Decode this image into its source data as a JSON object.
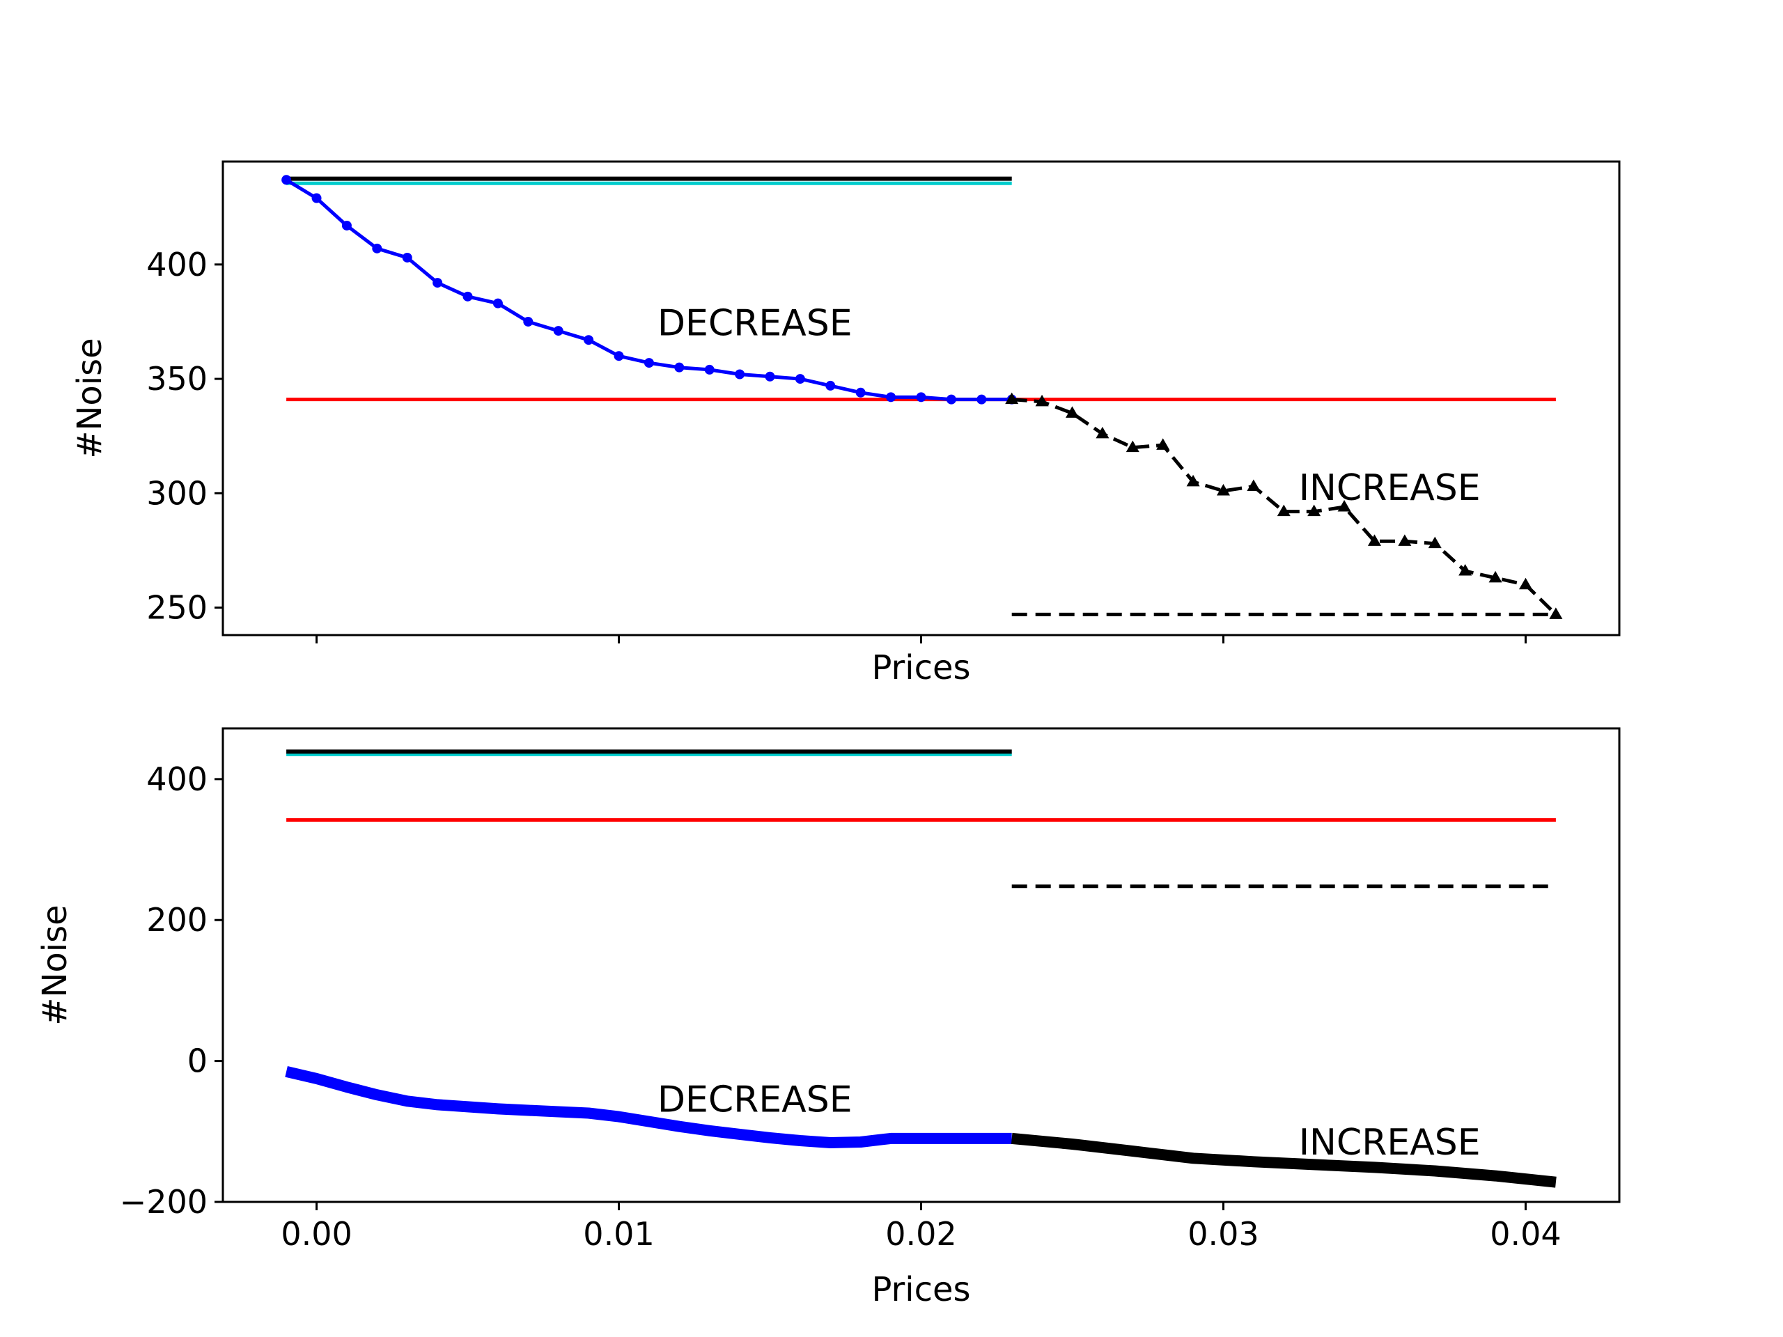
{
  "colors": {
    "decrease": "#0000ff",
    "increase": "#000000",
    "red_line": "#ff0000",
    "cyan_line": "#00cccc",
    "black_line": "#000000"
  },
  "chart_data": [
    {
      "type": "line",
      "panel": "top",
      "xlabel": "Prices",
      "ylabel": "#Noise",
      "xlim": [
        -0.0031,
        0.0431
      ],
      "ylim": [
        238,
        445
      ],
      "x_ticks": [
        0.0,
        0.01,
        0.02,
        0.03,
        0.04
      ],
      "x_tick_labels": [
        "",
        "",
        "",
        "",
        ""
      ],
      "y_ticks": [
        250,
        300,
        350,
        400
      ],
      "y_tick_labels": [
        "250",
        "300",
        "350",
        "400"
      ],
      "grid": false,
      "annotations": [
        {
          "text": "DECREASE",
          "x": 0.0145,
          "y": 369
        },
        {
          "text": "INCREASE",
          "x": 0.0355,
          "y": 297
        }
      ],
      "series": [
        {
          "role": "decrease",
          "style": "solid-dot",
          "x": [
            -0.001,
            0.0,
            0.001,
            0.002,
            0.003,
            0.004,
            0.005,
            0.006,
            0.007,
            0.008,
            0.009,
            0.01,
            0.011,
            0.012,
            0.013,
            0.014,
            0.015,
            0.016,
            0.017,
            0.018,
            0.019,
            0.02,
            0.021,
            0.022,
            0.023
          ],
          "y": [
            437,
            429,
            417,
            407,
            403,
            392,
            386,
            383,
            375,
            371,
            367,
            360,
            357,
            355,
            354,
            352,
            351,
            350,
            347,
            344,
            342,
            342,
            341,
            341,
            341
          ]
        },
        {
          "role": "increase",
          "style": "dashed-triangle",
          "x": [
            0.023,
            0.024,
            0.025,
            0.026,
            0.027,
            0.028,
            0.029,
            0.03,
            0.031,
            0.032,
            0.033,
            0.034,
            0.035,
            0.036,
            0.037,
            0.038,
            0.039,
            0.04,
            0.041
          ],
          "y": [
            341,
            340,
            335,
            326,
            320,
            321,
            305,
            301,
            303,
            292,
            292,
            294,
            279,
            279,
            278,
            266,
            263,
            260,
            247
          ]
        },
        {
          "role": "cyan_line",
          "style": "solid",
          "x": [
            -0.001,
            0.023
          ],
          "y": [
            435.5,
            435.5
          ]
        },
        {
          "role": "black_line",
          "style": "solid",
          "x": [
            -0.001,
            0.023
          ],
          "y": [
            437.5,
            437.5
          ]
        },
        {
          "role": "red_line",
          "style": "solid",
          "x": [
            -0.001,
            0.041
          ],
          "y": [
            341,
            341
          ]
        },
        {
          "role": "black_dashed",
          "style": "dashed",
          "x": [
            0.023,
            0.041
          ],
          "y": [
            247,
            247
          ]
        }
      ]
    },
    {
      "type": "line",
      "panel": "bottom",
      "xlabel": "Prices",
      "ylabel": "#Noise",
      "xlim": [
        -0.0031,
        0.0431
      ],
      "ylim": [
        -200,
        472
      ],
      "x_ticks": [
        0.0,
        0.01,
        0.02,
        0.03,
        0.04
      ],
      "x_tick_labels": [
        "0.00",
        "0.01",
        "0.02",
        "0.03",
        "0.04"
      ],
      "y_ticks": [
        -200,
        0,
        200,
        400
      ],
      "y_tick_labels": [
        "−200",
        "0",
        "200",
        "400"
      ],
      "grid": false,
      "annotations": [
        {
          "text": "DECREASE",
          "x": 0.0145,
          "y": -72
        },
        {
          "text": "INCREASE",
          "x": 0.0355,
          "y": -133
        }
      ],
      "series": [
        {
          "role": "decrease",
          "style": "thick",
          "x": [
            -0.001,
            0.0,
            0.001,
            0.002,
            0.003,
            0.004,
            0.005,
            0.006,
            0.007,
            0.008,
            0.009,
            0.01,
            0.011,
            0.012,
            0.013,
            0.014,
            0.015,
            0.016,
            0.017,
            0.018,
            0.019,
            0.02,
            0.021,
            0.022,
            0.023
          ],
          "y": [
            -15,
            -25,
            -37,
            -48,
            -57,
            -62,
            -65,
            -68,
            -70,
            -72,
            -74,
            -79,
            -86,
            -93,
            -99,
            -104,
            -109,
            -113,
            -116,
            -115,
            -110,
            -110,
            -110,
            -110,
            -110
          ]
        },
        {
          "role": "increase",
          "style": "thick",
          "x": [
            0.023,
            0.025,
            0.027,
            0.029,
            0.031,
            0.033,
            0.035,
            0.037,
            0.039,
            0.041
          ],
          "y": [
            -110,
            -118,
            -128,
            -138,
            -143,
            -147,
            -151,
            -156,
            -163,
            -172
          ]
        },
        {
          "role": "cyan_line",
          "style": "solid",
          "x": [
            -0.001,
            0.023
          ],
          "y": [
            435,
            435
          ]
        },
        {
          "role": "black_line",
          "style": "solid",
          "x": [
            -0.001,
            0.023
          ],
          "y": [
            439,
            439
          ]
        },
        {
          "role": "red_line",
          "style": "solid",
          "x": [
            -0.001,
            0.041
          ],
          "y": [
            342,
            342
          ]
        },
        {
          "role": "black_dashed",
          "style": "dashed",
          "x": [
            0.023,
            0.041
          ],
          "y": [
            248,
            248
          ]
        }
      ]
    }
  ]
}
